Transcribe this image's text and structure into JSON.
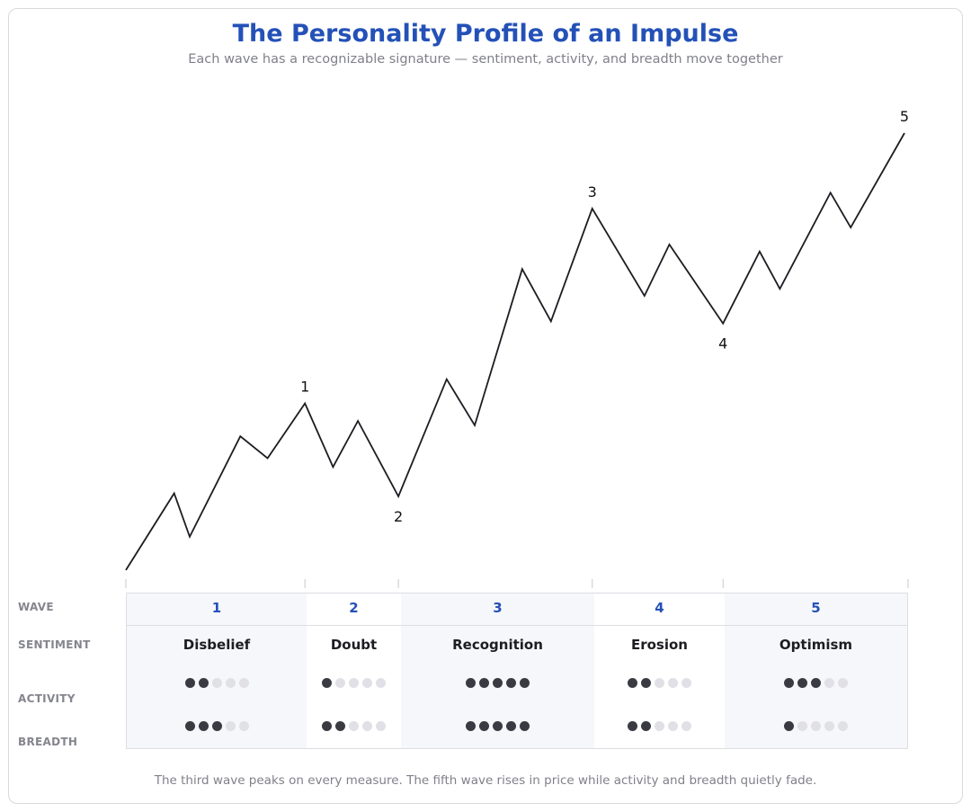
{
  "title": "The Personality Profile of an Impulse",
  "subtitle": "Each wave has a recognizable signature — sentiment, activity, and breadth move together",
  "footnote": "The third wave peaks on every measure. The fifth wave rises in price while activity and breadth quietly fade.",
  "row_labels": {
    "wave": "WAVE",
    "sentiment": "SENTIMENT",
    "activity": "ACTIVITY",
    "breadth": "BREADTH"
  },
  "colors": {
    "accent": "#2451b7",
    "line": "#1c1c22",
    "dot_on": "#3a3a42",
    "dot_off": "#e0e0e6",
    "shade": "#f6f7fa"
  },
  "chart_data": {
    "type": "line",
    "x": [
      0,
      0.062,
      0.082,
      0.147,
      0.182,
      0.23,
      0.266,
      0.298,
      0.35,
      0.412,
      0.448,
      0.509,
      0.546,
      0.599,
      0.666,
      0.698,
      0.767,
      0.814,
      0.84,
      0.905,
      0.931,
      1.0
    ],
    "y": [
      0,
      0.175,
      0.076,
      0.305,
      0.255,
      0.38,
      0.235,
      0.34,
      0.168,
      0.435,
      0.33,
      0.686,
      0.567,
      0.824,
      0.625,
      0.742,
      0.562,
      0.726,
      0.641,
      0.86,
      0.781,
      0.996
    ],
    "wave_labels": [
      {
        "label": "1",
        "point_index": 5,
        "position": "above"
      },
      {
        "label": "2",
        "point_index": 8,
        "position": "below"
      },
      {
        "label": "3",
        "point_index": 13,
        "position": "above"
      },
      {
        "label": "4",
        "point_index": 16,
        "position": "below"
      },
      {
        "label": "5",
        "point_index": 21,
        "position": "above"
      }
    ],
    "wave_boundaries_x": [
      0,
      0.23,
      0.35,
      0.599,
      0.767,
      1.0
    ]
  },
  "waves": [
    {
      "num": "1",
      "sentiment": "Disbelief",
      "activity": 2,
      "breadth": 3
    },
    {
      "num": "2",
      "sentiment": "Doubt",
      "activity": 1,
      "breadth": 2
    },
    {
      "num": "3",
      "sentiment": "Recognition",
      "activity": 5,
      "breadth": 5
    },
    {
      "num": "4",
      "sentiment": "Erosion",
      "activity": 2,
      "breadth": 2
    },
    {
      "num": "5",
      "sentiment": "Optimism",
      "activity": 3,
      "breadth": 1
    }
  ],
  "dot_max": 5
}
